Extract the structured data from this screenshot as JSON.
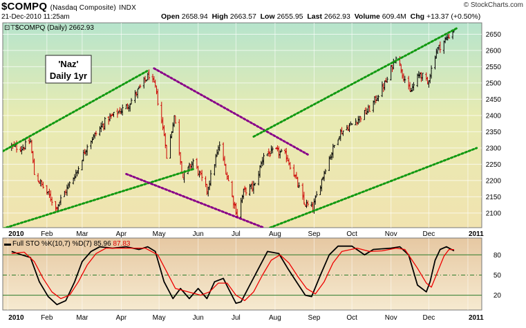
{
  "header": {
    "symbol": "$COMPQ",
    "name": "(Nasdaq Composite)",
    "exchange": "INDX",
    "datetime": "21-Dec-2010 11:25am",
    "brand": "© StockCharts.com",
    "open_label": "Open",
    "open": "2658.94",
    "high_label": "High",
    "high": "2663.57",
    "low_label": "Low",
    "low": "2655.95",
    "last_label": "Last",
    "last": "2662.93",
    "volume_label": "Volume",
    "volume": "609.4M",
    "chg_label": "Chg",
    "chg": "+13.37 (+0.50%)"
  },
  "legend_main": "$COMPQ (Daily) 2662.93",
  "annotation": [
    "'Naz'",
    "Daily 1yr"
  ],
  "stoch_legend": {
    "label": "Full STO %K(10,7) %D(7)",
    "k": "85.96",
    "d": "87.83"
  },
  "colors": {
    "price_up": "#000000",
    "price_down": "#cc0000",
    "channel_green": "#119911",
    "channel_purple": "#880088",
    "k_line": "#000000",
    "d_line": "#ee0000"
  },
  "chart_data": [
    {
      "type": "ohlc",
      "title": "$COMPQ (Daily)",
      "y_ticks": [
        2100,
        2150,
        2200,
        2250,
        2300,
        2350,
        2400,
        2450,
        2500,
        2550,
        2600,
        2650
      ],
      "ylim": [
        2055,
        2685
      ],
      "x_labels": [
        "2010",
        "Feb",
        "Mar",
        "Apr",
        "May",
        "Jun",
        "Jul",
        "Aug",
        "Sep",
        "Oct",
        "Nov",
        "Dec",
        "2011"
      ],
      "x_dates": [
        "2010-01-01",
        "2010-02-01",
        "2010-03-01",
        "2010-04-01",
        "2010-05-01",
        "2010-06-01",
        "2010-07-01",
        "2010-08-01",
        "2010-09-01",
        "2010-10-01",
        "2010-11-01",
        "2010-12-01",
        "2011-01-01"
      ],
      "close_anchors": [
        [
          "2010-01-04",
          2305
        ],
        [
          "2010-01-12",
          2300
        ],
        [
          "2010-01-19",
          2320
        ],
        [
          "2010-01-22",
          2220
        ],
        [
          "2010-02-05",
          2140
        ],
        [
          "2010-02-08",
          2115
        ],
        [
          "2010-02-25",
          2230
        ],
        [
          "2010-03-05",
          2310
        ],
        [
          "2010-03-20",
          2385
        ],
        [
          "2010-04-06",
          2430
        ],
        [
          "2010-04-23",
          2525
        ],
        [
          "2010-04-28",
          2485
        ],
        [
          "2010-05-06",
          2320
        ],
        [
          "2010-05-07",
          2265
        ],
        [
          "2010-05-13",
          2400
        ],
        [
          "2010-05-20",
          2210
        ],
        [
          "2010-05-28",
          2260
        ],
        [
          "2010-06-08",
          2170
        ],
        [
          "2010-06-18",
          2310
        ],
        [
          "2010-06-29",
          2135
        ],
        [
          "2010-07-02",
          2095
        ],
        [
          "2010-07-07",
          2165
        ],
        [
          "2010-07-16",
          2185
        ],
        [
          "2010-07-23",
          2280
        ],
        [
          "2010-08-02",
          2290
        ],
        [
          "2010-08-10",
          2275
        ],
        [
          "2010-08-17",
          2210
        ],
        [
          "2010-08-24",
          2130
        ],
        [
          "2010-08-31",
          2115
        ],
        [
          "2010-09-10",
          2240
        ],
        [
          "2010-09-21",
          2345
        ],
        [
          "2010-09-30",
          2370
        ],
        [
          "2010-10-15",
          2420
        ],
        [
          "2010-10-29",
          2510
        ],
        [
          "2010-11-05",
          2585
        ],
        [
          "2010-11-16",
          2470
        ],
        [
          "2010-11-24",
          2530
        ],
        [
          "2010-11-30",
          2500
        ],
        [
          "2010-12-07",
          2600
        ],
        [
          "2010-12-21",
          2662.93
        ]
      ],
      "last_bar": {
        "date": "2010-12-21",
        "open": 2658.94,
        "high": 2663.57,
        "low": 2655.95,
        "close": 2662.93
      },
      "trendlines": [
        {
          "color": "green",
          "from": [
            "2009-12-28",
            2290
          ],
          "to": [
            "2010-04-23",
            2540
          ]
        },
        {
          "color": "green",
          "from": [
            "2009-12-28",
            2052
          ],
          "to": [
            "2010-05-28",
            2235
          ]
        },
        {
          "color": "purple",
          "from": [
            "2010-04-27",
            2545
          ],
          "to": [
            "2010-08-27",
            2280
          ]
        },
        {
          "color": "purple",
          "from": [
            "2010-04-05",
            2220
          ],
          "to": [
            "2010-07-23",
            2055
          ]
        },
        {
          "color": "green",
          "from": [
            "2010-07-15",
            2335
          ],
          "to": [
            "2010-12-24",
            2670
          ]
        },
        {
          "color": "green",
          "from": [
            "2010-07-28",
            2055
          ],
          "to": [
            "2011-01-08",
            2300
          ]
        }
      ]
    },
    {
      "type": "line",
      "title": "Full STO %K(10,7) %D(7)",
      "y_ticks": [
        20,
        50,
        80
      ],
      "ylim": [
        -2,
        105
      ],
      "x_labels": [
        "2010",
        "Feb",
        "Mar",
        "Apr",
        "May",
        "Jun",
        "Jul",
        "Aug",
        "Sep",
        "Oct",
        "Nov",
        "Dec",
        "2011"
      ],
      "series": [
        {
          "name": "%K(10,7)",
          "color": "#000000",
          "points": [
            [
              "2010-01-04",
              85
            ],
            [
              "2010-01-12",
              80
            ],
            [
              "2010-01-19",
              76
            ],
            [
              "2010-01-26",
              40
            ],
            [
              "2010-02-02",
              18
            ],
            [
              "2010-02-09",
              6
            ],
            [
              "2010-02-16",
              12
            ],
            [
              "2010-02-23",
              40
            ],
            [
              "2010-03-01",
              70
            ],
            [
              "2010-03-08",
              85
            ],
            [
              "2010-03-15",
              92
            ],
            [
              "2010-03-25",
              90
            ],
            [
              "2010-04-05",
              92
            ],
            [
              "2010-04-15",
              88
            ],
            [
              "2010-04-22",
              92
            ],
            [
              "2010-04-28",
              85
            ],
            [
              "2010-05-05",
              40
            ],
            [
              "2010-05-12",
              15
            ],
            [
              "2010-05-18",
              30
            ],
            [
              "2010-05-25",
              15
            ],
            [
              "2010-06-01",
              30
            ],
            [
              "2010-06-08",
              15
            ],
            [
              "2010-06-14",
              40
            ],
            [
              "2010-06-21",
              45
            ],
            [
              "2010-06-25",
              30
            ],
            [
              "2010-07-01",
              8
            ],
            [
              "2010-07-05",
              10
            ],
            [
              "2010-07-12",
              35
            ],
            [
              "2010-07-19",
              60
            ],
            [
              "2010-07-26",
              85
            ],
            [
              "2010-08-04",
              82
            ],
            [
              "2010-08-11",
              60
            ],
            [
              "2010-08-18",
              40
            ],
            [
              "2010-08-25",
              20
            ],
            [
              "2010-08-30",
              18
            ],
            [
              "2010-09-06",
              50
            ],
            [
              "2010-09-13",
              80
            ],
            [
              "2010-09-20",
              93
            ],
            [
              "2010-10-01",
              93
            ],
            [
              "2010-10-11",
              80
            ],
            [
              "2010-10-18",
              88
            ],
            [
              "2010-11-01",
              90
            ],
            [
              "2010-11-08",
              92
            ],
            [
              "2010-11-15",
              80
            ],
            [
              "2010-11-22",
              35
            ],
            [
              "2010-11-29",
              25
            ],
            [
              "2010-12-02",
              40
            ],
            [
              "2010-12-06",
              72
            ],
            [
              "2010-12-10",
              88
            ],
            [
              "2010-12-15",
              92
            ],
            [
              "2010-12-21",
              85.96
            ]
          ]
        },
        {
          "name": "%D(7)",
          "color": "#ee0000",
          "points": [
            [
              "2010-01-04",
              82
            ],
            [
              "2010-01-14",
              84
            ],
            [
              "2010-01-22",
              70
            ],
            [
              "2010-01-29",
              45
            ],
            [
              "2010-02-05",
              25
            ],
            [
              "2010-02-12",
              15
            ],
            [
              "2010-02-19",
              20
            ],
            [
              "2010-02-26",
              40
            ],
            [
              "2010-03-05",
              65
            ],
            [
              "2010-03-12",
              82
            ],
            [
              "2010-03-20",
              90
            ],
            [
              "2010-04-05",
              90
            ],
            [
              "2010-04-20",
              90
            ],
            [
              "2010-04-30",
              80
            ],
            [
              "2010-05-07",
              55
            ],
            [
              "2010-05-14",
              30
            ],
            [
              "2010-05-24",
              25
            ],
            [
              "2010-06-03",
              20
            ],
            [
              "2010-06-10",
              25
            ],
            [
              "2010-06-17",
              38
            ],
            [
              "2010-06-24",
              38
            ],
            [
              "2010-07-01",
              20
            ],
            [
              "2010-07-08",
              12
            ],
            [
              "2010-07-15",
              25
            ],
            [
              "2010-07-22",
              50
            ],
            [
              "2010-07-29",
              72
            ],
            [
              "2010-08-05",
              80
            ],
            [
              "2010-08-12",
              68
            ],
            [
              "2010-08-19",
              48
            ],
            [
              "2010-08-26",
              30
            ],
            [
              "2010-09-02",
              22
            ],
            [
              "2010-09-09",
              40
            ],
            [
              "2010-09-16",
              68
            ],
            [
              "2010-09-23",
              85
            ],
            [
              "2010-10-05",
              90
            ],
            [
              "2010-10-15",
              85
            ],
            [
              "2010-10-25",
              86
            ],
            [
              "2010-11-05",
              90
            ],
            [
              "2010-11-12",
              88
            ],
            [
              "2010-11-22",
              60
            ],
            [
              "2010-11-29",
              38
            ],
            [
              "2010-12-03",
              32
            ],
            [
              "2010-12-08",
              55
            ],
            [
              "2010-12-13",
              78
            ],
            [
              "2010-12-17",
              88
            ],
            [
              "2010-12-21",
              87.83
            ]
          ]
        }
      ]
    }
  ]
}
